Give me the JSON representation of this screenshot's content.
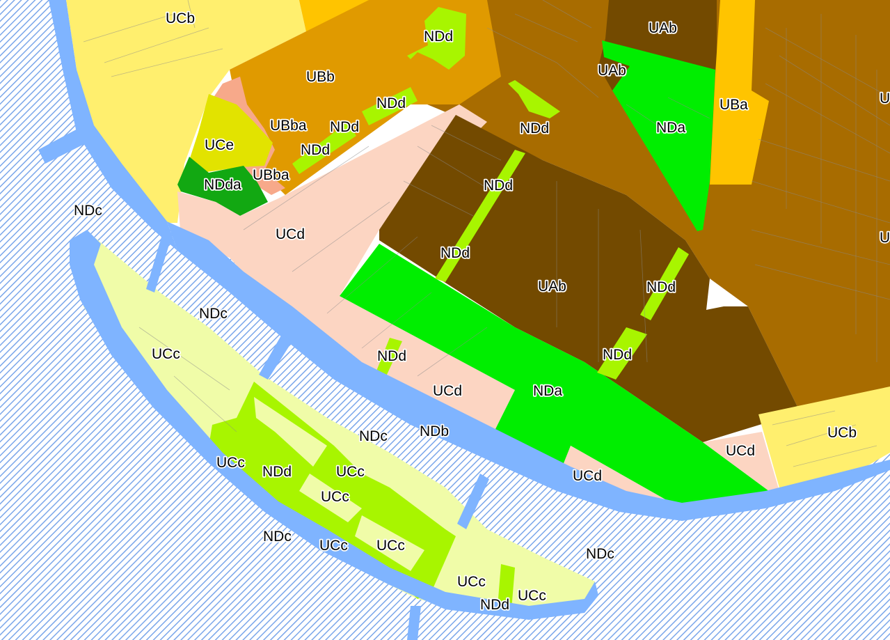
{
  "map": {
    "colors": {
      "UAb": "#734a00",
      "UBa": "#ffc400",
      "UBb": "#e09a00",
      "UBba": "#f7a98a",
      "UCb": "#ffef6e",
      "UCc": "#f0fca8",
      "UCd": "#fcd5c2",
      "UCe": "#e2e300",
      "NDa": "#00ee00",
      "NDb": "#7fb4ff",
      "NDc": "#8ab8f0",
      "NDd": "#a8f500",
      "NDda": "#12a812",
      "brown_main": "#a86c00"
    },
    "labels": [
      {
        "id": "ucb-top",
        "text": "UCb"
      },
      {
        "id": "ndd-1",
        "text": "NDd"
      },
      {
        "id": "uab-top",
        "text": "UAb"
      },
      {
        "id": "ubb",
        "text": "UBb"
      },
      {
        "id": "uab-2",
        "text": "UAb"
      },
      {
        "id": "ndd-2",
        "text": "NDd"
      },
      {
        "id": "uba",
        "text": "UBa"
      },
      {
        "id": "ubba-1",
        "text": "UBba"
      },
      {
        "id": "ndd-3",
        "text": "NDd"
      },
      {
        "id": "ndd-4",
        "text": "NDd"
      },
      {
        "id": "nda-1",
        "text": "NDa"
      },
      {
        "id": "uce",
        "text": "UCe"
      },
      {
        "id": "ndd-5",
        "text": "NDd"
      },
      {
        "id": "ubba-2",
        "text": "UBba"
      },
      {
        "id": "ndda",
        "text": "NDda"
      },
      {
        "id": "ndd-6",
        "text": "NDd"
      },
      {
        "id": "ndc-1",
        "text": "NDc"
      },
      {
        "id": "ucd-1",
        "text": "UCd"
      },
      {
        "id": "ndd-7",
        "text": "NDd"
      },
      {
        "id": "uab-3",
        "text": "UAb"
      },
      {
        "id": "ndd-8",
        "text": "NDd"
      },
      {
        "id": "ndc-2",
        "text": "NDc"
      },
      {
        "id": "ucc-1",
        "text": "UCc"
      },
      {
        "id": "ndd-9",
        "text": "NDd"
      },
      {
        "id": "ndd-10",
        "text": "NDd"
      },
      {
        "id": "ucd-2",
        "text": "UCd"
      },
      {
        "id": "nda-2",
        "text": "NDa"
      },
      {
        "id": "ndc-3",
        "text": "NDc"
      },
      {
        "id": "ndb",
        "text": "NDb"
      },
      {
        "id": "ucb-right",
        "text": "UCb"
      },
      {
        "id": "ucd-3",
        "text": "UCd"
      },
      {
        "id": "ucc-2",
        "text": "UCc"
      },
      {
        "id": "ndd-11",
        "text": "NDd"
      },
      {
        "id": "ucc-3",
        "text": "UCc"
      },
      {
        "id": "ucd-4",
        "text": "UCd"
      },
      {
        "id": "ucc-4",
        "text": "UCc"
      },
      {
        "id": "ndc-4",
        "text": "NDc"
      },
      {
        "id": "ucc-5",
        "text": "UCc"
      },
      {
        "id": "ucc-6",
        "text": "UCc"
      },
      {
        "id": "ndc-5",
        "text": "NDc"
      },
      {
        "id": "ucc-7",
        "text": "UCc"
      },
      {
        "id": "ndd-12",
        "text": "NDd"
      },
      {
        "id": "ucc-8",
        "text": "UCc"
      },
      {
        "id": "cut-u-1",
        "text": "U"
      },
      {
        "id": "cut-u-2",
        "text": "U"
      }
    ]
  }
}
